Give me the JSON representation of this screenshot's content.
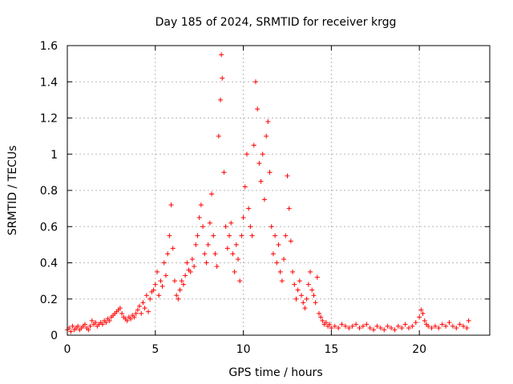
{
  "chart_data": {
    "type": "scatter",
    "title": "Day 185 of 2024, SRMTID for receiver krgg",
    "xlabel": "GPS time / hours",
    "ylabel": "SRMTID / TECUs",
    "xlim": [
      0,
      24
    ],
    "ylim": [
      0,
      1.6
    ],
    "x_ticks": [
      0,
      5,
      10,
      15,
      20
    ],
    "x_tick_labels": [
      "0",
      "5",
      "10",
      "15",
      "20"
    ],
    "y_ticks": [
      0,
      0.2,
      0.4,
      0.6,
      0.8,
      1,
      1.2,
      1.4,
      1.6
    ],
    "y_tick_labels": [
      "0",
      "0.2",
      "0.4",
      "0.6",
      "0.8",
      "1",
      "1.2",
      "1.4",
      "1.6"
    ],
    "grid": true,
    "marker": "plus",
    "series": [
      {
        "name": "SRMTID",
        "color": "#ff0000",
        "points": [
          [
            0.0,
            0.03
          ],
          [
            0.1,
            0.04
          ],
          [
            0.2,
            0.02
          ],
          [
            0.3,
            0.05
          ],
          [
            0.4,
            0.03
          ],
          [
            0.5,
            0.04
          ],
          [
            0.6,
            0.05
          ],
          [
            0.7,
            0.03
          ],
          [
            0.8,
            0.04
          ],
          [
            0.9,
            0.05
          ],
          [
            1.0,
            0.06
          ],
          [
            1.1,
            0.04
          ],
          [
            1.2,
            0.03
          ],
          [
            1.3,
            0.05
          ],
          [
            1.4,
            0.08
          ],
          [
            1.5,
            0.06
          ],
          [
            1.6,
            0.07
          ],
          [
            1.7,
            0.05
          ],
          [
            1.8,
            0.06
          ],
          [
            1.9,
            0.07
          ],
          [
            2.0,
            0.06
          ],
          [
            2.1,
            0.08
          ],
          [
            2.2,
            0.07
          ],
          [
            2.3,
            0.09
          ],
          [
            2.4,
            0.08
          ],
          [
            2.5,
            0.1
          ],
          [
            2.6,
            0.11
          ],
          [
            2.7,
            0.12
          ],
          [
            2.8,
            0.13
          ],
          [
            2.9,
            0.14
          ],
          [
            3.0,
            0.15
          ],
          [
            3.1,
            0.12
          ],
          [
            3.2,
            0.1
          ],
          [
            3.3,
            0.09
          ],
          [
            3.4,
            0.08
          ],
          [
            3.5,
            0.1
          ],
          [
            3.6,
            0.09
          ],
          [
            3.7,
            0.11
          ],
          [
            3.8,
            0.1
          ],
          [
            3.9,
            0.12
          ],
          [
            4.0,
            0.14
          ],
          [
            4.1,
            0.16
          ],
          [
            4.2,
            0.12
          ],
          [
            4.3,
            0.18
          ],
          [
            4.4,
            0.15
          ],
          [
            4.5,
            0.22
          ],
          [
            4.6,
            0.13
          ],
          [
            4.7,
            0.2
          ],
          [
            4.8,
            0.24
          ],
          [
            4.9,
            0.25
          ],
          [
            5.0,
            0.28
          ],
          [
            5.1,
            0.35
          ],
          [
            5.2,
            0.22
          ],
          [
            5.3,
            0.3
          ],
          [
            5.4,
            0.27
          ],
          [
            5.5,
            0.4
          ],
          [
            5.6,
            0.33
          ],
          [
            5.7,
            0.45
          ],
          [
            5.8,
            0.55
          ],
          [
            5.9,
            0.72
          ],
          [
            6.0,
            0.48
          ],
          [
            6.1,
            0.3
          ],
          [
            6.2,
            0.22
          ],
          [
            6.3,
            0.2
          ],
          [
            6.4,
            0.25
          ],
          [
            6.5,
            0.3
          ],
          [
            6.6,
            0.28
          ],
          [
            6.7,
            0.33
          ],
          [
            6.8,
            0.4
          ],
          [
            6.9,
            0.36
          ],
          [
            7.0,
            0.35
          ],
          [
            7.1,
            0.42
          ],
          [
            7.2,
            0.38
          ],
          [
            7.3,
            0.5
          ],
          [
            7.4,
            0.55
          ],
          [
            7.5,
            0.65
          ],
          [
            7.6,
            0.72
          ],
          [
            7.7,
            0.6
          ],
          [
            7.8,
            0.45
          ],
          [
            7.9,
            0.4
          ],
          [
            8.0,
            0.5
          ],
          [
            8.1,
            0.62
          ],
          [
            8.2,
            0.78
          ],
          [
            8.3,
            0.55
          ],
          [
            8.4,
            0.45
          ],
          [
            8.5,
            0.38
          ],
          [
            8.6,
            1.1
          ],
          [
            8.7,
            1.3
          ],
          [
            8.75,
            1.55
          ],
          [
            8.8,
            1.42
          ],
          [
            8.9,
            0.9
          ],
          [
            9.0,
            0.6
          ],
          [
            9.1,
            0.48
          ],
          [
            9.2,
            0.55
          ],
          [
            9.3,
            0.62
          ],
          [
            9.4,
            0.45
          ],
          [
            9.5,
            0.35
          ],
          [
            9.6,
            0.5
          ],
          [
            9.7,
            0.42
          ],
          [
            9.8,
            0.3
          ],
          [
            9.9,
            0.55
          ],
          [
            10.0,
            0.65
          ],
          [
            10.1,
            0.82
          ],
          [
            10.2,
            1.0
          ],
          [
            10.3,
            0.7
          ],
          [
            10.4,
            0.6
          ],
          [
            10.5,
            0.55
          ],
          [
            10.6,
            1.05
          ],
          [
            10.7,
            1.4
          ],
          [
            10.8,
            1.25
          ],
          [
            10.9,
            0.95
          ],
          [
            11.0,
            0.85
          ],
          [
            11.1,
            1.0
          ],
          [
            11.2,
            0.75
          ],
          [
            11.3,
            1.1
          ],
          [
            11.4,
            1.18
          ],
          [
            11.5,
            0.9
          ],
          [
            11.6,
            0.6
          ],
          [
            11.7,
            0.45
          ],
          [
            11.8,
            0.55
          ],
          [
            11.9,
            0.4
          ],
          [
            12.0,
            0.5
          ],
          [
            12.1,
            0.35
          ],
          [
            12.2,
            0.3
          ],
          [
            12.3,
            0.42
          ],
          [
            12.4,
            0.55
          ],
          [
            12.5,
            0.88
          ],
          [
            12.6,
            0.7
          ],
          [
            12.7,
            0.52
          ],
          [
            12.8,
            0.35
          ],
          [
            12.9,
            0.28
          ],
          [
            13.0,
            0.2
          ],
          [
            13.1,
            0.25
          ],
          [
            13.2,
            0.3
          ],
          [
            13.3,
            0.22
          ],
          [
            13.4,
            0.18
          ],
          [
            13.5,
            0.15
          ],
          [
            13.6,
            0.2
          ],
          [
            13.7,
            0.28
          ],
          [
            13.8,
            0.35
          ],
          [
            13.9,
            0.25
          ],
          [
            14.0,
            0.22
          ],
          [
            14.1,
            0.18
          ],
          [
            14.2,
            0.32
          ],
          [
            14.3,
            0.12
          ],
          [
            14.4,
            0.1
          ],
          [
            14.5,
            0.08
          ],
          [
            14.6,
            0.06
          ],
          [
            14.7,
            0.07
          ],
          [
            14.8,
            0.05
          ],
          [
            14.9,
            0.06
          ],
          [
            15.0,
            0.04
          ],
          [
            15.2,
            0.05
          ],
          [
            15.4,
            0.04
          ],
          [
            15.6,
            0.06
          ],
          [
            15.8,
            0.05
          ],
          [
            16.0,
            0.04
          ],
          [
            16.2,
            0.05
          ],
          [
            16.4,
            0.06
          ],
          [
            16.6,
            0.04
          ],
          [
            16.8,
            0.05
          ],
          [
            17.0,
            0.06
          ],
          [
            17.2,
            0.04
          ],
          [
            17.4,
            0.03
          ],
          [
            17.6,
            0.05
          ],
          [
            17.8,
            0.04
          ],
          [
            18.0,
            0.03
          ],
          [
            18.2,
            0.05
          ],
          [
            18.4,
            0.04
          ],
          [
            18.6,
            0.03
          ],
          [
            18.8,
            0.05
          ],
          [
            19.0,
            0.04
          ],
          [
            19.2,
            0.06
          ],
          [
            19.4,
            0.04
          ],
          [
            19.6,
            0.05
          ],
          [
            19.8,
            0.07
          ],
          [
            20.0,
            0.1
          ],
          [
            20.1,
            0.14
          ],
          [
            20.2,
            0.12
          ],
          [
            20.3,
            0.08
          ],
          [
            20.4,
            0.06
          ],
          [
            20.5,
            0.05
          ],
          [
            20.7,
            0.04
          ],
          [
            20.9,
            0.05
          ],
          [
            21.1,
            0.04
          ],
          [
            21.3,
            0.06
          ],
          [
            21.5,
            0.05
          ],
          [
            21.7,
            0.07
          ],
          [
            21.9,
            0.05
          ],
          [
            22.1,
            0.04
          ],
          [
            22.3,
            0.06
          ],
          [
            22.5,
            0.05
          ],
          [
            22.7,
            0.04
          ],
          [
            22.8,
            0.08
          ]
        ]
      }
    ]
  }
}
